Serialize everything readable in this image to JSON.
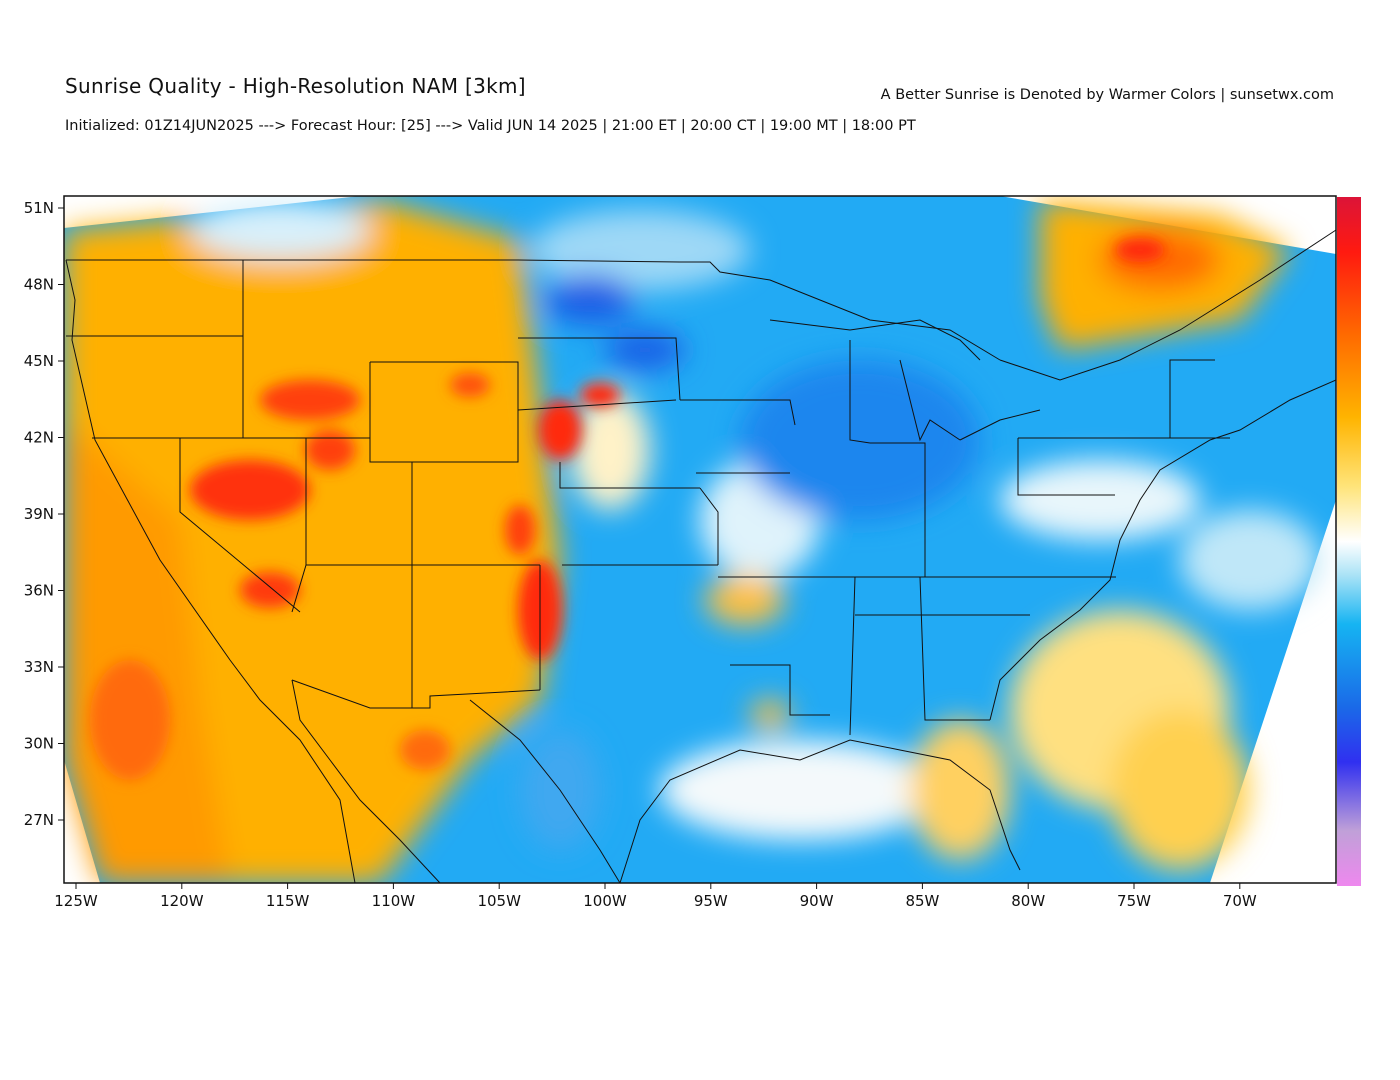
{
  "header": {
    "title": "Sunrise Quality - High-Resolution NAM [3km]",
    "subtitle": "Initialized: 01Z14JUN2025 ---> Forecast Hour: [25] ---> Valid JUN 14 2025 | 21:00 ET | 20:00 CT | 19:00 MT | 18:00 PT",
    "credit": "A Better Sunrise is Denoted by Warmer Colors | sunsetwx.com"
  },
  "map": {
    "projection": "Lambert conformal (CONUS)",
    "lat_range": [
      25,
      51
    ],
    "lon_range": [
      -125,
      -65
    ],
    "lat_ticks": [
      "51N",
      "48N",
      "45N",
      "42N",
      "39N",
      "36N",
      "33N",
      "30N",
      "27N"
    ],
    "lon_ticks": [
      "125W",
      "120W",
      "115W",
      "110W",
      "105W",
      "100W",
      "95W",
      "90W",
      "85W",
      "80W",
      "75W",
      "70W"
    ],
    "variable": "Sunrise quality",
    "scale_note": "warmer colors = better sunrise",
    "colorscale": [
      "#e8a0e0",
      "#b0a0d0",
      "#6060e0",
      "#1010f0",
      "#2060e0",
      "#20b0f0",
      "#a0e0f8",
      "#ffffff",
      "#ffe060",
      "#ffb000",
      "#ff7000",
      "#ff2010",
      "#e01030"
    ]
  },
  "colors": {
    "land_base": "#27a8f5",
    "warm_region": "#ffb000",
    "hot_region": "#ff3a10",
    "border": "#111111"
  }
}
